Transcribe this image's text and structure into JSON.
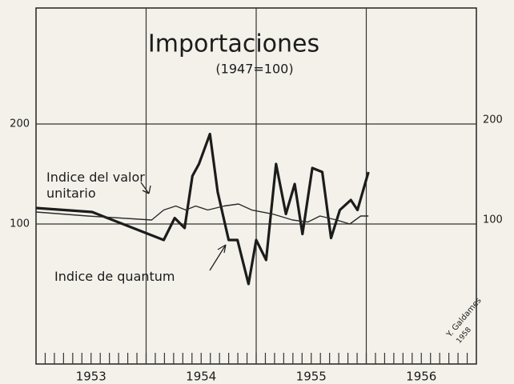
{
  "chart_data": {
    "type": "line",
    "title": "Importaciones",
    "subtitle": "(1947=100)",
    "series": [
      {
        "name": "Indice de quantum",
        "color": "#1c1c1c",
        "width": 3.2,
        "x": [
          1953.0,
          1953.51,
          1954.16,
          1954.26,
          1954.35,
          1954.42,
          1954.48,
          1954.58,
          1954.65,
          1954.75,
          1954.83,
          1954.93,
          1955.0,
          1955.09,
          1955.18,
          1955.27,
          1955.35,
          1955.42,
          1955.51,
          1955.6,
          1955.68,
          1955.76,
          1955.86,
          1955.92,
          1956.02
        ],
        "values": [
          116,
          112,
          84,
          106,
          96,
          148,
          160,
          190,
          132,
          84,
          84,
          40,
          84,
          64,
          160,
          110,
          140,
          90,
          156,
          152,
          86,
          114,
          124,
          114,
          152
        ]
      },
      {
        "name": "Indice del valor unitario",
        "color": "#2a2a2a",
        "width": 1.4,
        "x": [
          1953.0,
          1953.47,
          1954.05,
          1954.16,
          1954.27,
          1954.36,
          1954.45,
          1954.56,
          1954.71,
          1954.84,
          1954.96,
          1955.15,
          1955.33,
          1955.47,
          1955.58,
          1955.73,
          1955.85,
          1955.95,
          1956.02
        ],
        "values": [
          112,
          108,
          104,
          114,
          118,
          114,
          118,
          114,
          118,
          120,
          114,
          110,
          104,
          102,
          108,
          104,
          100,
          108,
          108
        ]
      }
    ],
    "xlim": [
      1953,
      1957
    ],
    "xticks": [
      {
        "value": 1953.5,
        "label": "1953"
      },
      {
        "value": 1954.5,
        "label": "1954"
      },
      {
        "value": 1955.5,
        "label": "1955"
      },
      {
        "value": 1956.5,
        "label": "1956"
      }
    ],
    "xgrid": [
      1954,
      1955,
      1956
    ],
    "minor_ticks_per_year": 12,
    "ylim": [
      -40,
      316
    ],
    "yticks": [
      100,
      200
    ],
    "grid": true,
    "signature": [
      "Y. Galdames",
      "1958"
    ]
  }
}
